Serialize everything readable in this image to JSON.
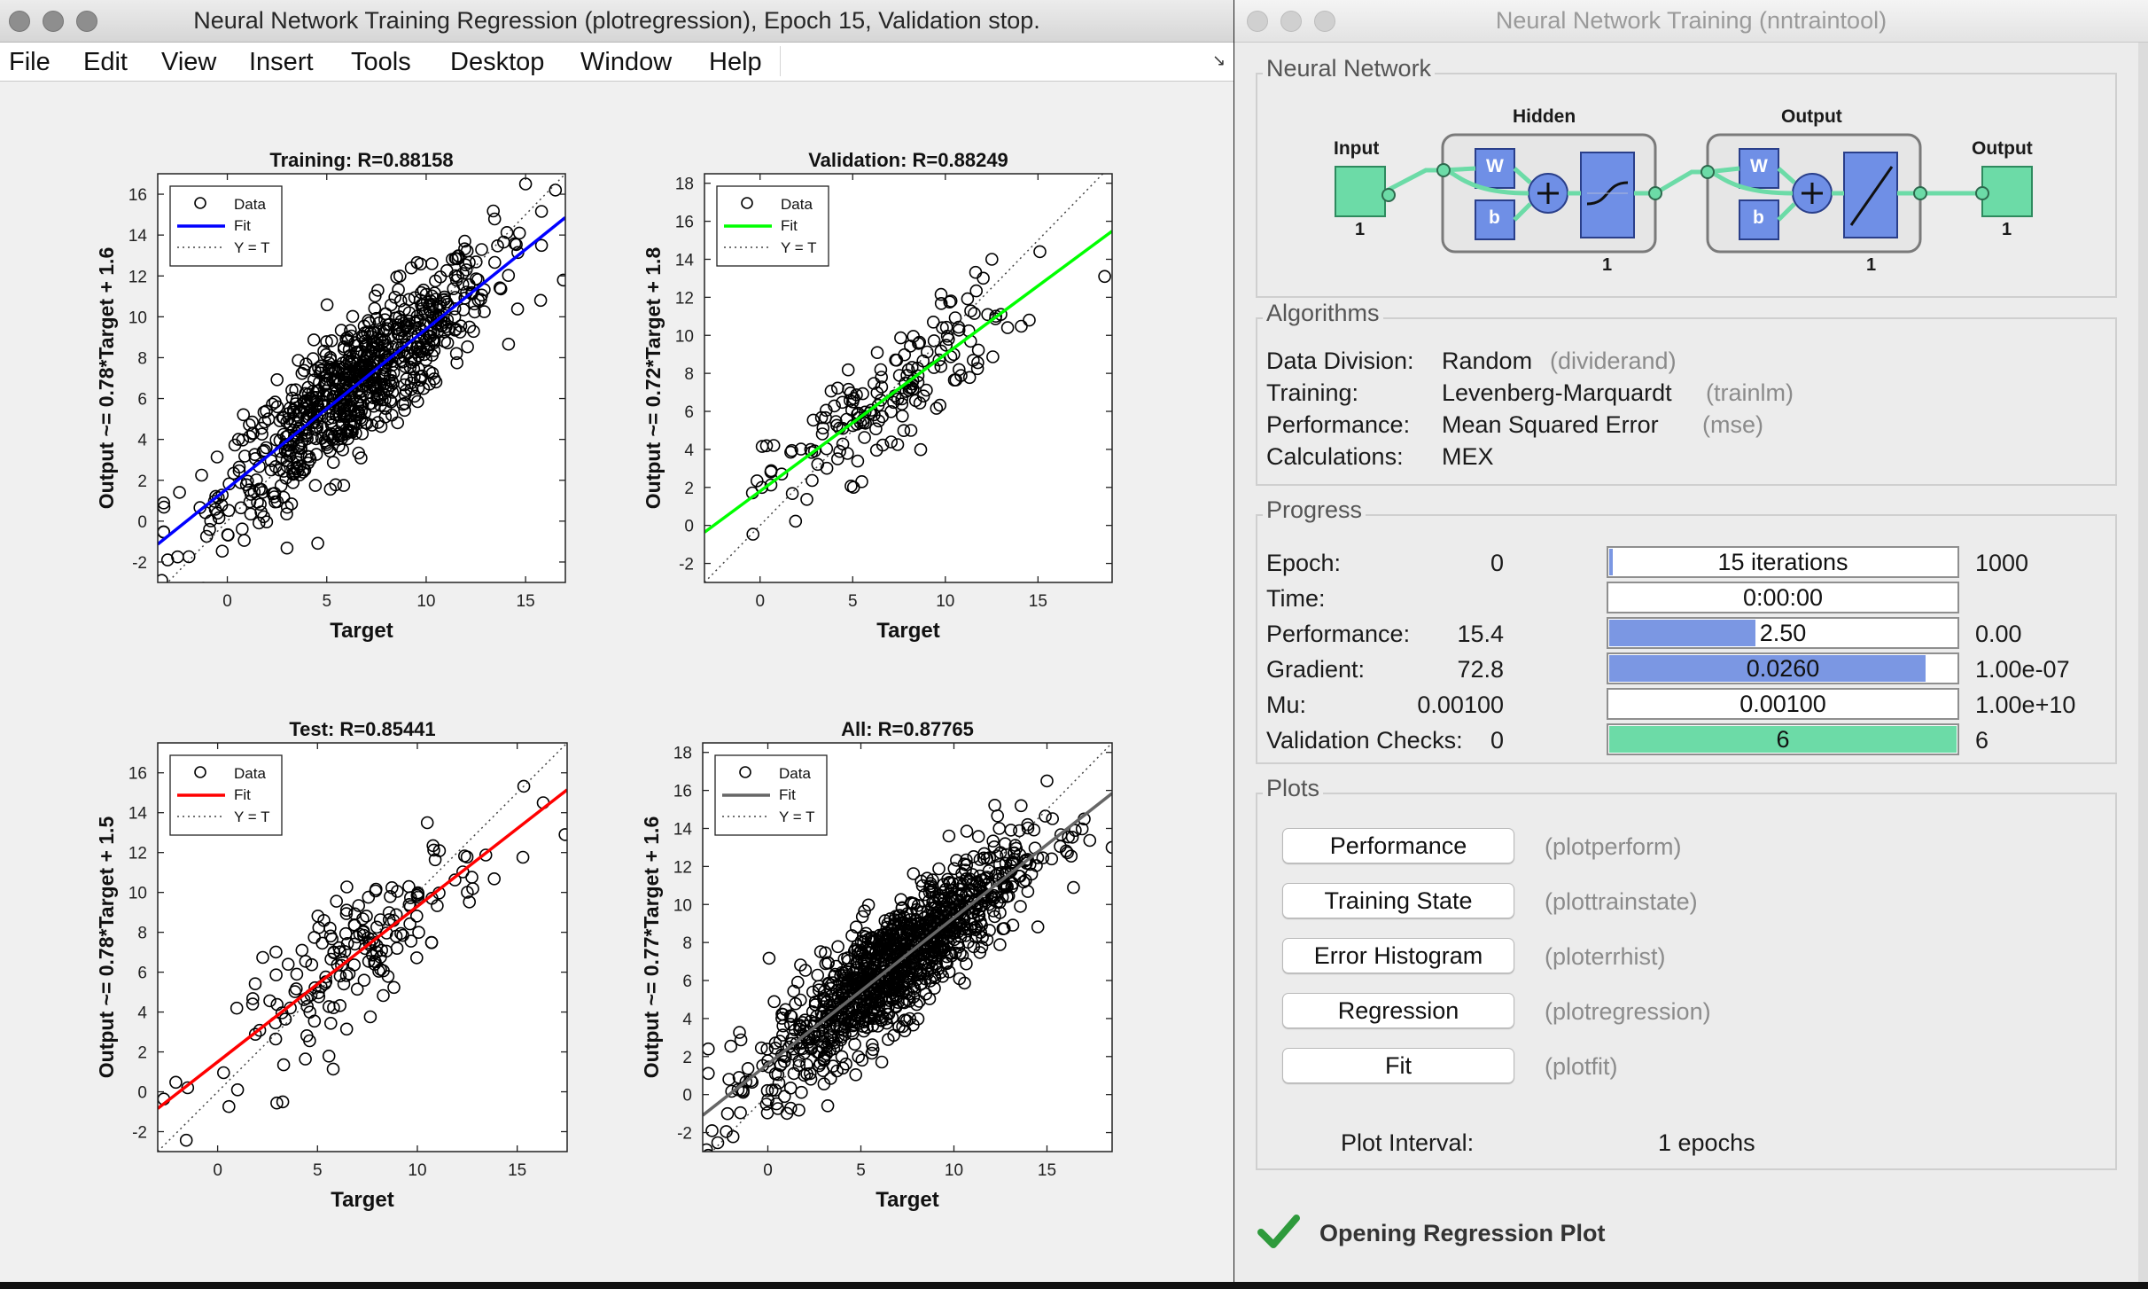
{
  "left_window": {
    "title": "Neural Network Training Regression (plotregression), Epoch 15, Validation stop.",
    "menu": [
      "File",
      "Edit",
      "View",
      "Insert",
      "Tools",
      "Desktop",
      "Window",
      "Help"
    ]
  },
  "chart_data": [
    {
      "type": "scatter",
      "title": "Training: R=0.88158",
      "xlabel": "Target",
      "ylabel": "Output ~= 0.78*Target + 1.6",
      "xlim": [
        -3.5,
        17
      ],
      "ylim": [
        -3,
        17
      ],
      "xticks": [
        0,
        5,
        10,
        15
      ],
      "yticks": [
        -2,
        0,
        2,
        4,
        6,
        8,
        10,
        12,
        14,
        16
      ],
      "fit": {
        "slope": 0.78,
        "intercept": 1.6,
        "color": "#0000ff"
      },
      "legend": {
        "position": "top-left",
        "entries": [
          "Data",
          "Fit",
          "Y = T"
        ]
      },
      "n_points": 800,
      "x_mean": 6.5,
      "x_sd": 3.4,
      "extreme_points": [
        [
          -3.3,
          -2.9
        ],
        [
          -3.0,
          -1.9
        ],
        [
          16.5,
          16.2
        ],
        [
          16.9,
          11.8
        ],
        [
          15.0,
          16.5
        ]
      ]
    },
    {
      "type": "scatter",
      "title": "Validation: R=0.88249",
      "xlabel": "Target",
      "ylabel": "Output ~= 0.72*Target + 1.8",
      "xlim": [
        -3,
        19
      ],
      "ylim": [
        -3,
        18.5
      ],
      "xticks": [
        0,
        5,
        10,
        15
      ],
      "yticks": [
        -2,
        0,
        2,
        4,
        6,
        8,
        10,
        12,
        14,
        16,
        18
      ],
      "fit": {
        "slope": 0.72,
        "intercept": 1.8,
        "color": "#00ff00"
      },
      "legend": {
        "position": "top-left",
        "entries": [
          "Data",
          "Fit",
          "Y = T"
        ]
      },
      "n_points": 170,
      "x_mean": 7,
      "x_sd": 3.3,
      "extreme_points": [
        [
          18.6,
          13.1
        ],
        [
          15.1,
          14.4
        ],
        [
          13.0,
          11.1
        ],
        [
          0.1,
          2.0
        ]
      ]
    },
    {
      "type": "scatter",
      "title": "Test: R=0.85441",
      "xlabel": "Target",
      "ylabel": "Output ~= 0.78*Target + 1.5",
      "xlim": [
        -3,
        17.5
      ],
      "ylim": [
        -3,
        17.5
      ],
      "xticks": [
        0,
        5,
        10,
        15
      ],
      "yticks": [
        -2,
        0,
        2,
        4,
        6,
        8,
        10,
        12,
        14,
        16
      ],
      "fit": {
        "slope": 0.78,
        "intercept": 1.5,
        "color": "#ff0000"
      },
      "legend": {
        "position": "top-left",
        "entries": [
          "Data",
          "Fit",
          "Y = T"
        ]
      },
      "n_points": 170,
      "x_mean": 7.2,
      "x_sd": 3.1,
      "extreme_points": [
        [
          -1.5,
          0.2
        ],
        [
          1.0,
          0.1
        ],
        [
          17.4,
          12.9
        ],
        [
          16.3,
          14.5
        ],
        [
          10.5,
          13.5
        ]
      ]
    },
    {
      "type": "scatter",
      "title": "All: R=0.87765",
      "xlabel": "Target",
      "ylabel": "Output ~= 0.77*Target + 1.6",
      "xlim": [
        -3.5,
        18.5
      ],
      "ylim": [
        -3,
        18.5
      ],
      "xticks": [
        0,
        5,
        10,
        15
      ],
      "yticks": [
        -2,
        0,
        2,
        4,
        6,
        8,
        10,
        12,
        14,
        16,
        18
      ],
      "fit": {
        "slope": 0.77,
        "intercept": 1.6,
        "color": "#666666"
      },
      "legend": {
        "position": "top-left",
        "entries": [
          "Data",
          "Fit",
          "Y = T"
        ]
      },
      "n_points": 1140,
      "x_mean": 6.8,
      "x_sd": 3.4,
      "extreme_points": [
        [
          -3.3,
          -2.9
        ],
        [
          -3.0,
          -1.9
        ],
        [
          18.5,
          13.0
        ],
        [
          15.0,
          16.5
        ],
        [
          17.0,
          14.5
        ]
      ]
    }
  ],
  "right_window": {
    "title": "Neural Network Training (nntraintool)",
    "network": {
      "group_label": "Neural Network",
      "input_label": "Input",
      "input_size": "1",
      "hidden_label": "Hidden",
      "hidden_size": "1",
      "output_layer_label": "Output",
      "output_layer_size": "1",
      "output_label": "Output",
      "output_size": "1",
      "w": "W",
      "b": "b"
    },
    "algorithms": {
      "group_label": "Algorithms",
      "rows": [
        {
          "label": "Data Division:",
          "value": "Random",
          "func": "(dividerand)"
        },
        {
          "label": "Training:",
          "value": "Levenberg-Marquardt",
          "func": "(trainlm)"
        },
        {
          "label": "Performance:",
          "value": "Mean Squared Error",
          "func": "(mse)"
        },
        {
          "label": "Calculations:",
          "value": "MEX",
          "func": ""
        }
      ]
    },
    "progress": {
      "group_label": "Progress",
      "rows": [
        {
          "label": "Epoch:",
          "start": "0",
          "bar_text": "15 iterations",
          "end": "1000",
          "fill": 0.015,
          "color": "#7b97e3"
        },
        {
          "label": "Time:",
          "start": "",
          "bar_text": "0:00:00",
          "end": "",
          "fill": 0,
          "color": "#7b97e3"
        },
        {
          "label": "Performance:",
          "start": "15.4",
          "bar_text": "2.50",
          "end": "0.00",
          "fill": 0.42,
          "color": "#7b97e3"
        },
        {
          "label": "Gradient:",
          "start": "72.8",
          "bar_text": "0.0260",
          "end": "1.00e-07",
          "fill": 0.91,
          "color": "#7b97e3"
        },
        {
          "label": "Mu:",
          "start": "0.00100",
          "bar_text": "0.00100",
          "end": "1.00e+10",
          "fill": 0,
          "color": "#7b97e3"
        },
        {
          "label": "Validation Checks:",
          "start": "0",
          "bar_text": "6",
          "end": "6",
          "fill": 1.0,
          "color": "#6cdba7"
        }
      ]
    },
    "plots": {
      "group_label": "Plots",
      "buttons": [
        {
          "label": "Performance",
          "func": "(plotperform)"
        },
        {
          "label": "Training State",
          "func": "(plottrainstate)"
        },
        {
          "label": "Error Histogram",
          "func": "(ploterrhist)"
        },
        {
          "label": "Regression",
          "func": "(plotregression)"
        },
        {
          "label": "Fit",
          "func": "(plotfit)"
        }
      ],
      "interval_label": "Plot Interval:",
      "interval_value": "1 epochs",
      "interval_fraction": 0.0
    },
    "status": "Opening Regression Plot"
  }
}
